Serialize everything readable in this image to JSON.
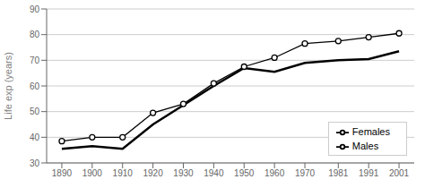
{
  "chart_data": {
    "type": "line",
    "ylabel": "Life exp (years)",
    "x": [
      1890,
      1900,
      1910,
      1920,
      1930,
      1940,
      1950,
      1960,
      1970,
      1981,
      1991,
      2001
    ],
    "series": [
      {
        "name": "Males",
        "color": "#000000",
        "marker": "none",
        "values": [
          35.5,
          36.5,
          35.5,
          45.0,
          52.5,
          60.0,
          67.0,
          65.5,
          69.0,
          70.0,
          70.5,
          73.5
        ]
      },
      {
        "name": "Females",
        "color": "#000000",
        "marker": "circle",
        "values": [
          38.5,
          40.0,
          40.0,
          49.5,
          53.0,
          61.0,
          67.5,
          71.0,
          76.5,
          77.5,
          79.0,
          80.5
        ]
      }
    ],
    "xlim": [
      1885,
      2006
    ],
    "ylim": [
      30,
      90
    ],
    "xticks": [
      1890,
      1900,
      1910,
      1920,
      1930,
      1940,
      1950,
      1960,
      1970,
      1981,
      1991,
      2001
    ],
    "yticks": [
      30,
      40,
      50,
      60,
      70,
      80,
      90
    ],
    "grid": true,
    "legend": "lower right"
  }
}
